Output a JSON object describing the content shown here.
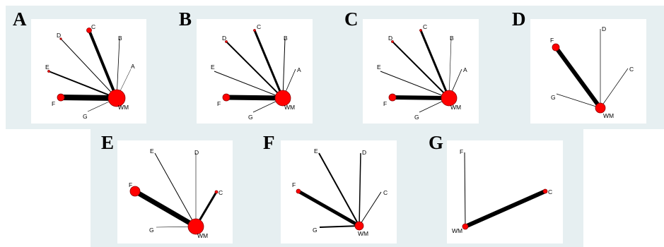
{
  "figure": {
    "panels": [
      {
        "letter": "A",
        "nodes": [
          {
            "id": "WM",
            "size": 12
          },
          {
            "id": "F",
            "size": 5
          },
          {
            "id": "G",
            "size": 0
          },
          {
            "id": "E",
            "size": 1.5
          },
          {
            "id": "D",
            "size": 1.2
          },
          {
            "id": "C",
            "size": 3.5
          },
          {
            "id": "B",
            "size": 0
          },
          {
            "id": "A",
            "size": 0
          }
        ],
        "edges": [
          {
            "from": "WM",
            "to": "F",
            "weight": 8
          },
          {
            "from": "WM",
            "to": "G",
            "weight": 0.6
          },
          {
            "from": "WM",
            "to": "E",
            "weight": 2
          },
          {
            "from": "WM",
            "to": "D",
            "weight": 1
          },
          {
            "from": "WM",
            "to": "C",
            "weight": 4
          },
          {
            "from": "WM",
            "to": "B",
            "weight": 0.8
          },
          {
            "from": "WM",
            "to": "A",
            "weight": 0.5
          }
        ]
      },
      {
        "letter": "B",
        "nodes": [
          {
            "id": "WM",
            "size": 11
          },
          {
            "id": "F",
            "size": 5
          },
          {
            "id": "G",
            "size": 0
          },
          {
            "id": "E",
            "size": 0
          },
          {
            "id": "D",
            "size": 1.5
          },
          {
            "id": "C",
            "size": 1.5
          },
          {
            "id": "B",
            "size": 0
          },
          {
            "id": "A",
            "size": 0
          }
        ],
        "edges": [
          {
            "from": "WM",
            "to": "F",
            "weight": 7
          },
          {
            "from": "WM",
            "to": "G",
            "weight": 0.8
          },
          {
            "from": "WM",
            "to": "E",
            "weight": 1
          },
          {
            "from": "WM",
            "to": "D",
            "weight": 2
          },
          {
            "from": "WM",
            "to": "C",
            "weight": 3
          },
          {
            "from": "WM",
            "to": "B",
            "weight": 1
          },
          {
            "from": "WM",
            "to": "A",
            "weight": 0.8
          }
        ]
      },
      {
        "letter": "C",
        "nodes": [
          {
            "id": "WM",
            "size": 11
          },
          {
            "id": "F",
            "size": 5
          },
          {
            "id": "G",
            "size": 0
          },
          {
            "id": "E",
            "size": 0
          },
          {
            "id": "D",
            "size": 1.5
          },
          {
            "id": "C",
            "size": 1.5
          },
          {
            "id": "B",
            "size": 0
          },
          {
            "id": "A",
            "size": 0
          }
        ],
        "edges": [
          {
            "from": "WM",
            "to": "F",
            "weight": 6
          },
          {
            "from": "WM",
            "to": "G",
            "weight": 0.8
          },
          {
            "from": "WM",
            "to": "E",
            "weight": 1
          },
          {
            "from": "WM",
            "to": "D",
            "weight": 2
          },
          {
            "from": "WM",
            "to": "C",
            "weight": 3
          },
          {
            "from": "WM",
            "to": "B",
            "weight": 0.6
          },
          {
            "from": "WM",
            "to": "A",
            "weight": 0.8
          }
        ]
      },
      {
        "letter": "D",
        "nodes": [
          {
            "id": "WM",
            "size": 7
          },
          {
            "id": "F",
            "size": 5
          },
          {
            "id": "G",
            "size": 0
          },
          {
            "id": "D",
            "size": 0
          },
          {
            "id": "C",
            "size": 0
          }
        ],
        "edges": [
          {
            "from": "WM",
            "to": "F",
            "weight": 6
          },
          {
            "from": "WM",
            "to": "G",
            "weight": 0.7
          },
          {
            "from": "WM",
            "to": "D",
            "weight": 0.7
          },
          {
            "from": "WM",
            "to": "C",
            "weight": 0.7
          }
        ]
      },
      {
        "letter": "E",
        "nodes": [
          {
            "id": "WM",
            "size": 11
          },
          {
            "id": "F",
            "size": 7
          },
          {
            "id": "G",
            "size": 0
          },
          {
            "id": "E",
            "size": 0
          },
          {
            "id": "D",
            "size": 0
          },
          {
            "id": "C",
            "size": 2
          }
        ],
        "edges": [
          {
            "from": "WM",
            "to": "F",
            "weight": 7
          },
          {
            "from": "WM",
            "to": "G",
            "weight": 0.6
          },
          {
            "from": "WM",
            "to": "E",
            "weight": 1
          },
          {
            "from": "WM",
            "to": "D",
            "weight": 0.6
          },
          {
            "from": "WM",
            "to": "C",
            "weight": 3
          }
        ]
      },
      {
        "letter": "F",
        "nodes": [
          {
            "id": "WM",
            "size": 6
          },
          {
            "id": "F",
            "size": 3
          },
          {
            "id": "G",
            "size": 0
          },
          {
            "id": "E",
            "size": 0
          },
          {
            "id": "D",
            "size": 0
          },
          {
            "id": "C",
            "size": 0
          }
        ],
        "edges": [
          {
            "from": "WM",
            "to": "F",
            "weight": 5
          },
          {
            "from": "WM",
            "to": "G",
            "weight": 2
          },
          {
            "from": "WM",
            "to": "E",
            "weight": 2
          },
          {
            "from": "WM",
            "to": "D",
            "weight": 1.5
          },
          {
            "from": "WM",
            "to": "C",
            "weight": 1
          }
        ]
      },
      {
        "letter": "G",
        "nodes": [
          {
            "id": "WM",
            "size": 4
          },
          {
            "id": "F",
            "size": 0
          },
          {
            "id": "C",
            "size": 3
          }
        ],
        "edges": [
          {
            "from": "WM",
            "to": "F",
            "weight": 1
          },
          {
            "from": "WM",
            "to": "C",
            "weight": 6
          }
        ]
      }
    ],
    "colors": {
      "node_fill": "#ff0000",
      "node_stroke": "#8b0000",
      "edge": "#000000",
      "panel_bg": "#ffffff",
      "figure_bg": "#e6eff1"
    }
  }
}
